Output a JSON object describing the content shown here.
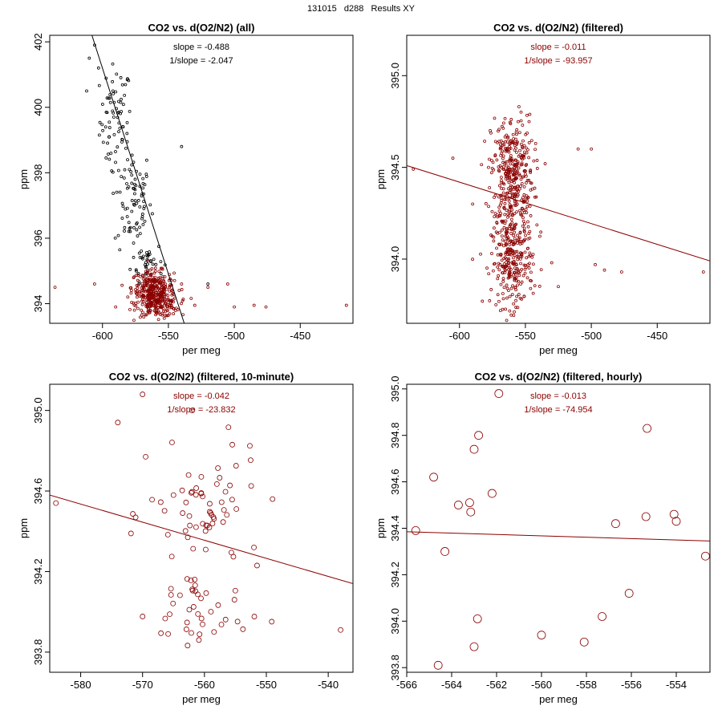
{
  "page": {
    "title": "131015   d288   Results XY"
  },
  "colors": {
    "black": "#000000",
    "red": "#8b0000"
  },
  "chart_data": [
    {
      "type": "scatter",
      "title": "CO2 vs. d(O2/N2) (all)",
      "xlabel": "per meg",
      "ylabel": "ppm",
      "xlim": [
        -640,
        -410
      ],
      "ylim": [
        393.4,
        402.2
      ],
      "xticks": [
        -600,
        -550,
        -500,
        -450
      ],
      "yticks": [
        394,
        396,
        398,
        400,
        402
      ],
      "slope_text": "slope = -0.488",
      "inv_slope_text": "1/slope = -2.047",
      "annot_color": "black",
      "fit_color": "black",
      "fit_line": [
        [
          -608,
          402.2
        ],
        [
          -538,
          393.4
        ]
      ],
      "series": [
        {
          "name": "all",
          "color": "black",
          "clusters": [
            {
              "cx": -590,
              "cy": 399.6,
              "sx": 6,
              "sy": 0.85,
              "n": 70
            },
            {
              "cx": -577,
              "cy": 397.2,
              "sx": 7,
              "sy": 0.8,
              "n": 80
            },
            {
              "cx": -566,
              "cy": 395.3,
              "sx": 6,
              "sy": 0.3,
              "n": 40
            }
          ],
          "points": [
            [
              -606,
              401.9
            ],
            [
              -603,
              401.2
            ],
            [
              -612,
              400.5
            ],
            [
              -610,
              401.5
            ],
            [
              -540,
              398.8
            ],
            [
              -520,
              394.6
            ]
          ]
        },
        {
          "name": "filtered",
          "color": "red",
          "clusters": [
            {
              "cx": -562,
              "cy": 394.5,
              "sx": 8,
              "sy": 0.25,
              "n": 220
            },
            {
              "cx": -558,
              "cy": 394.0,
              "sx": 8,
              "sy": 0.2,
              "n": 200
            }
          ],
          "points": [
            [
              -636,
              394.5
            ],
            [
              -606,
              394.6
            ],
            [
              -590,
              393.9
            ],
            [
              -540,
              394.6
            ],
            [
              -520,
              394.5
            ],
            [
              -500,
              393.9
            ],
            [
              -485,
              393.95
            ],
            [
              -476,
              393.9
            ],
            [
              -415,
              393.95
            ],
            [
              -505,
              394.6
            ],
            [
              -530,
              393.95
            ]
          ]
        }
      ]
    },
    {
      "type": "scatter",
      "title": "CO2 vs. d(O2/N2) (filtered)",
      "xlabel": "per meg",
      "ylabel": "ppm",
      "xlim": [
        -640,
        -410
      ],
      "ylim": [
        393.65,
        395.22
      ],
      "xticks": [
        -600,
        -550,
        -500,
        -450
      ],
      "yticks": [
        394.0,
        394.5,
        395.0
      ],
      "slope_text": "slope = -0.011",
      "inv_slope_text": "1/slope = -93.957",
      "annot_color": "red",
      "fit_color": "red",
      "fit_line": [
        [
          -640,
          394.51
        ],
        [
          -410,
          393.99
        ]
      ],
      "series": [
        {
          "name": "filtered",
          "color": "red",
          "clusters": [
            {
              "cx": -560,
              "cy": 394.48,
              "sx": 8,
              "sy": 0.15,
              "n": 330
            },
            {
              "cx": -560,
              "cy": 393.98,
              "sx": 8,
              "sy": 0.12,
              "n": 260
            },
            {
              "cx": -560,
              "cy": 394.22,
              "sx": 8,
              "sy": 0.1,
              "n": 60
            }
          ],
          "points": [
            [
              -635,
              394.49
            ],
            [
              -605,
              394.55
            ],
            [
              -590,
              394.3
            ],
            [
              -510,
              394.6
            ],
            [
              -500,
              394.6
            ],
            [
              -497,
              393.97
            ],
            [
              -490,
              393.94
            ],
            [
              -477,
              393.93
            ],
            [
              -415,
              393.93
            ],
            [
              -530,
              393.98
            ],
            [
              -535,
              394.52
            ],
            [
              -525,
              393.85
            ]
          ]
        }
      ]
    },
    {
      "type": "scatter",
      "title": "CO2 vs. d(O2/N2) (filtered, 10-minute)",
      "xlabel": "per meg",
      "ylabel": "ppm",
      "xlim": [
        -585,
        -536
      ],
      "ylim": [
        393.7,
        395.13
      ],
      "xticks": [
        -580,
        -570,
        -560,
        -550,
        -540
      ],
      "yticks": [
        393.8,
        394.2,
        394.6,
        395.0
      ],
      "slope_text": "slope = -0.042",
      "inv_slope_text": "1/slope = -23.832",
      "annot_color": "red",
      "fit_color": "red",
      "fit_line": [
        [
          -585,
          394.58
        ],
        [
          -536,
          394.14
        ]
      ],
      "series": [
        {
          "name": "10-minute",
          "color": "red",
          "clusters": [
            {
              "cx": -560,
              "cy": 394.48,
              "sx": 4.5,
              "sy": 0.15,
              "n": 60
            },
            {
              "cx": -561,
              "cy": 394.0,
              "sx": 4,
              "sy": 0.12,
              "n": 40
            }
          ],
          "points": [
            [
              -584,
              394.54
            ],
            [
              -570,
              395.08
            ],
            [
              -574,
              394.94
            ],
            [
              -569.5,
              394.77
            ],
            [
              -549,
              394.56
            ],
            [
              -538,
              393.91
            ],
            [
              -552,
              394.32
            ],
            [
              -551.5,
              394.23
            ],
            [
              -555.5,
              394.83
            ],
            [
              -562,
              395.0
            ]
          ]
        }
      ]
    },
    {
      "type": "scatter",
      "title": "CO2 vs. d(O2/N2) (filtered, hourly)",
      "xlabel": "per meg",
      "ylabel": "ppm",
      "xlim": [
        -566,
        -552.5
      ],
      "ylim": [
        393.78,
        395.02
      ],
      "xticks": [
        -566,
        -564,
        -562,
        -560,
        -558,
        -556,
        -554
      ],
      "yticks": [
        393.8,
        394.0,
        394.2,
        394.4,
        394.6,
        394.8,
        395.0
      ],
      "slope_text": "slope = -0.013",
      "inv_slope_text": "1/slope = -74.954",
      "annot_color": "red",
      "fit_color": "red",
      "fit_line": [
        [
          -566,
          394.385
        ],
        [
          -552.5,
          394.345
        ]
      ],
      "series": [
        {
          "name": "hourly",
          "color": "red",
          "clusters": [],
          "points": [
            [
              -565.6,
              394.39
            ],
            [
              -564.8,
              394.62
            ],
            [
              -564.3,
              394.3
            ],
            [
              -563.7,
              394.5
            ],
            [
              -563.2,
              394.51
            ],
            [
              -563.15,
              394.47
            ],
            [
              -563.0,
              394.74
            ],
            [
              -562.8,
              394.8
            ],
            [
              -562.85,
              394.01
            ],
            [
              -562.2,
              394.55
            ],
            [
              -561.9,
              394.98
            ],
            [
              -563.0,
              393.89
            ],
            [
              -564.6,
              393.81
            ],
            [
              -560.0,
              393.94
            ],
            [
              -558.1,
              393.91
            ],
            [
              -557.3,
              394.02
            ],
            [
              -556.7,
              394.42
            ],
            [
              -556.1,
              394.12
            ],
            [
              -555.3,
              394.83
            ],
            [
              -555.35,
              394.45
            ],
            [
              -554.1,
              394.46
            ],
            [
              -554.0,
              394.43
            ],
            [
              -552.7,
              394.28
            ]
          ]
        }
      ]
    }
  ]
}
